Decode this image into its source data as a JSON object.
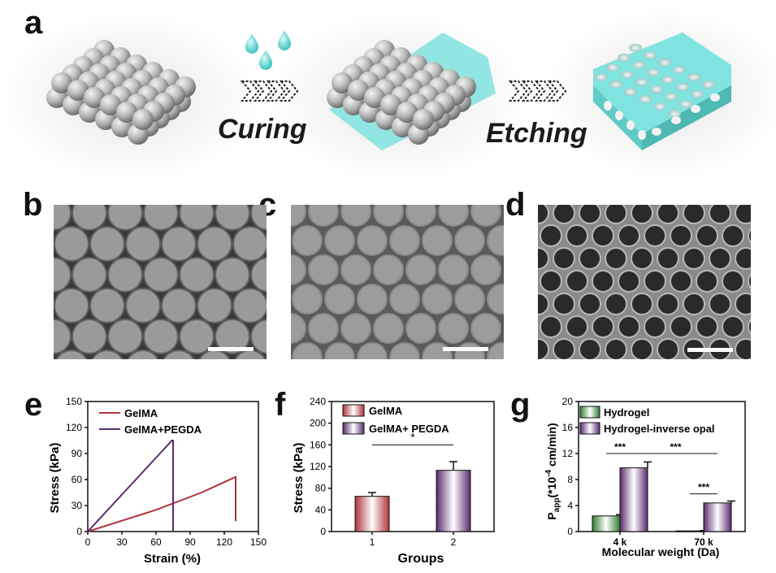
{
  "panel_labels": {
    "a": "a",
    "b": "b",
    "c": "c",
    "d": "d",
    "e": "e",
    "f": "f",
    "g": "g"
  },
  "schematic": {
    "step1": "Curing",
    "step2": "Etching"
  },
  "colors": {
    "cyan": "#7fe3df",
    "sphere": "#b8b8b8",
    "gelma": "#b0343a",
    "pegda": "#5a2a6e",
    "hydrogel": "#2e7d32"
  },
  "chart_data": [
    {
      "type": "line",
      "xlabel": "Strain (%)",
      "ylabel": "Stress (kPa)",
      "xlim": [
        0,
        150
      ],
      "ylim": [
        0,
        150
      ],
      "xticks": [
        "0",
        "30",
        "60",
        "90",
        "120",
        "150"
      ],
      "yticks": [
        "0",
        "30",
        "60",
        "90",
        "120",
        "150"
      ],
      "legend_position": "top-left",
      "series": [
        {
          "name": "GelMA",
          "color": "#b0343a",
          "x": [
            0,
            60,
            100,
            130,
            130
          ],
          "y": [
            0,
            25,
            45,
            63,
            12
          ]
        },
        {
          "name": "GelMA+PEGDA",
          "color": "#5a2a6e",
          "x": [
            0,
            74,
            75,
            75
          ],
          "y": [
            0,
            105,
            105,
            0
          ]
        }
      ]
    },
    {
      "type": "bar",
      "xlabel": "Groups",
      "ylabel": "Stress (kPa)",
      "ylim": [
        0,
        240
      ],
      "yticks": [
        "0",
        "40",
        "80",
        "120",
        "160",
        "200",
        "240"
      ],
      "categories": [
        "1",
        "2"
      ],
      "values": [
        65,
        113
      ],
      "errors": [
        7,
        16
      ],
      "legend": [
        "GelMA",
        "GelMA+ PEGDA"
      ],
      "significance": "*"
    },
    {
      "type": "bar",
      "xlabel": "Molecular weight (Da)",
      "ylabel": "P",
      "ylabel_sub": "app",
      "ylabel_rest": "(*10",
      "ylabel_exp": "-4",
      "ylabel_unit": " cm/min)",
      "ylim": [
        0,
        20
      ],
      "yticks": [
        "0",
        "4",
        "8",
        "12",
        "16",
        "20"
      ],
      "categories": [
        "4 k",
        "70 k"
      ],
      "series": [
        {
          "name": "Hydrogel",
          "values": [
            2.4,
            0.1
          ],
          "errors": [
            0.2,
            0.05
          ]
        },
        {
          "name": "Hydrogel-inverse opal",
          "values": [
            9.8,
            4.4
          ],
          "errors": [
            0.9,
            0.3
          ]
        }
      ],
      "significance": [
        "***",
        "***",
        "***"
      ]
    }
  ]
}
